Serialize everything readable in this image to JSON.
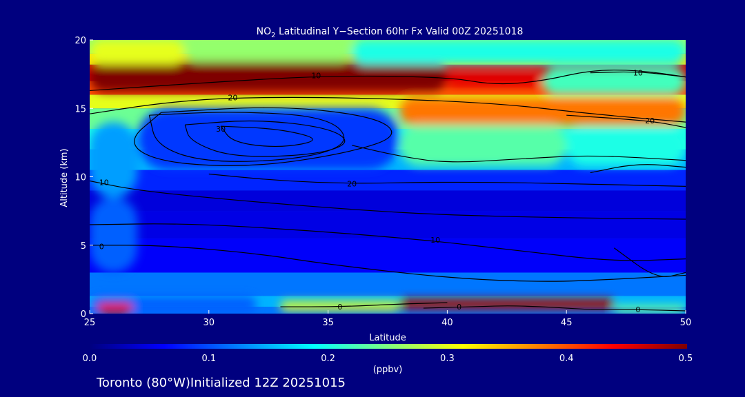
{
  "chart_data": {
    "type": "heatmap",
    "title": {
      "species_main": "NO",
      "species_sub": "2",
      "rest": " Latitudinal Y−Section 60hr  Fx Valid 00Z 20251018"
    },
    "xlabel": "Latitude",
    "ylabel": "Altitude (km)",
    "xlim": [
      25,
      50
    ],
    "ylim": [
      0,
      20
    ],
    "x_ticks": [
      25,
      30,
      35,
      40,
      45,
      50
    ],
    "y_ticks": [
      0,
      5,
      10,
      15,
      20
    ],
    "colorbar": {
      "label": "(ppbv)",
      "range": [
        0.0,
        0.5
      ],
      "ticks": [
        "0.0",
        "0.1",
        "0.2",
        "0.3",
        "0.4",
        "0.5"
      ],
      "colormap": [
        "#00007f",
        "#0000ff",
        "#0080ff",
        "#00ffff",
        "#80ff80",
        "#ffff00",
        "#ff8000",
        "#ff0000",
        "#7f0000"
      ]
    },
    "bands": [
      {
        "y0": 0.0,
        "y1": 0.5,
        "value": 0.12
      },
      {
        "y0": 0.5,
        "y1": 1.3,
        "value": 0.15
      },
      {
        "y0": 1.3,
        "y1": 3.0,
        "value": 0.12
      },
      {
        "y0": 3.0,
        "y1": 5.5,
        "value": 0.06
      },
      {
        "y0": 5.5,
        "y1": 7.5,
        "value": 0.05
      },
      {
        "y0": 7.5,
        "y1": 9.0,
        "value": 0.045
      },
      {
        "y0": 9.0,
        "y1": 10.5,
        "value": 0.08
      },
      {
        "y0": 10.5,
        "y1": 12.0,
        "value": 0.15
      },
      {
        "y0": 12.0,
        "y1": 13.5,
        "value": 0.2
      },
      {
        "y0": 13.5,
        "y1": 15.0,
        "value": 0.24
      },
      {
        "y0": 15.0,
        "y1": 16.0,
        "value": 0.3
      },
      {
        "y0": 16.0,
        "y1": 17.0,
        "value": 0.4
      },
      {
        "y0": 17.0,
        "y1": 18.2,
        "value": 0.46
      },
      {
        "y0": 18.2,
        "y1": 19.0,
        "value": 0.33
      },
      {
        "y0": 19.0,
        "y1": 20.0,
        "value": 0.26
      }
    ],
    "features": [
      {
        "x0": 25,
        "x1": 40,
        "y0": 16.2,
        "y1": 18.4,
        "value": 0.5
      },
      {
        "x0": 40,
        "x1": 44,
        "y0": 16.5,
        "y1": 17.5,
        "value": 0.45
      },
      {
        "x0": 25,
        "x1": 29,
        "y0": 18.2,
        "y1": 20.0,
        "value": 0.3
      },
      {
        "x0": 29,
        "x1": 36,
        "y0": 18.4,
        "y1": 20.0,
        "value": 0.26
      },
      {
        "x0": 36,
        "x1": 50,
        "y0": 18.2,
        "y1": 20.0,
        "value": 0.2
      },
      {
        "x0": 44,
        "x1": 50,
        "y0": 16.0,
        "y1": 18.0,
        "value": 0.22
      },
      {
        "x0": 38,
        "x1": 50,
        "y0": 13.8,
        "y1": 15.8,
        "value": 0.38
      },
      {
        "x0": 27,
        "x1": 38,
        "y0": 10.5,
        "y1": 15.0,
        "value": 0.09
      },
      {
        "x0": 38,
        "x1": 45,
        "y0": 10.8,
        "y1": 13.8,
        "value": 0.23
      },
      {
        "x0": 45,
        "x1": 50,
        "y0": 10.8,
        "y1": 13.5,
        "value": 0.2
      },
      {
        "x0": 25,
        "x1": 27,
        "y0": 8.5,
        "y1": 14.0,
        "value": 0.14
      },
      {
        "x0": 25,
        "x1": 27,
        "y0": 3.0,
        "y1": 8.5,
        "value": 0.11
      },
      {
        "x0": 25,
        "x1": 32,
        "y0": 0.0,
        "y1": 1.3,
        "value": 0.11
      },
      {
        "x0": 33,
        "x1": 38,
        "y0": 0.2,
        "y1": 0.9,
        "value": 0.3
      },
      {
        "x0": 38,
        "x1": 47,
        "y0": 0.3,
        "y1": 1.1,
        "value": 0.48
      },
      {
        "x0": 47,
        "x1": 50,
        "y0": 0.0,
        "y1": 0.6,
        "value": 0.24
      },
      {
        "x0": 25.3,
        "x1": 26.8,
        "y0": 0.0,
        "y1": 0.8,
        "value": 0.45
      }
    ],
    "contours": [
      {
        "label": "10",
        "label_at": [
          34.5,
          17.4
        ],
        "points": [
          [
            25,
            16.3
          ],
          [
            30,
            16.9
          ],
          [
            35,
            17.4
          ],
          [
            40,
            17.3
          ],
          [
            42,
            16.7
          ],
          [
            44,
            17.0
          ],
          [
            46,
            17.8
          ],
          [
            48,
            17.8
          ],
          [
            50,
            17.3
          ]
        ]
      },
      {
        "label": "10",
        "label_at": [
          48,
          17.6
        ],
        "points": [
          [
            46,
            17.6
          ],
          [
            48,
            17.7
          ],
          [
            50,
            17.3
          ]
        ]
      },
      {
        "label": "20",
        "label_at": [
          31,
          15.8
        ],
        "points": [
          [
            25,
            14.6
          ],
          [
            28,
            15.4
          ],
          [
            31,
            15.8
          ],
          [
            36,
            15.8
          ],
          [
            42,
            15.4
          ],
          [
            46,
            14.6
          ],
          [
            50,
            14.0
          ]
        ]
      },
      {
        "label": "20",
        "label_at": [
          48.5,
          14.1
        ],
        "points": [
          [
            45,
            14.5
          ],
          [
            48.5,
            14.1
          ],
          [
            50,
            13.6
          ]
        ]
      },
      {
        "label": "",
        "label_at": null,
        "points": [
          [
            28,
            14.7
          ],
          [
            33,
            15.2
          ],
          [
            37,
            14.4
          ],
          [
            38,
            13.0
          ],
          [
            36,
            11.8
          ],
          [
            32,
            10.7
          ],
          [
            28,
            11.0
          ],
          [
            26.5,
            12.5
          ],
          [
            28,
            14.7
          ]
        ]
      },
      {
        "label": "",
        "label_at": null,
        "points": [
          [
            27.5,
            14.5
          ],
          [
            31,
            14.8
          ],
          [
            35,
            14.4
          ],
          [
            36,
            12.5
          ],
          [
            34,
            11.3
          ],
          [
            30,
            11.0
          ],
          [
            27.8,
            12.2
          ],
          [
            27.5,
            14.5
          ]
        ]
      },
      {
        "label": "",
        "label_at": null,
        "points": [
          [
            29,
            13.8
          ],
          [
            32,
            14.2
          ],
          [
            35,
            13.6
          ],
          [
            36,
            12.5
          ],
          [
            34.5,
            11.6
          ],
          [
            31,
            11.4
          ],
          [
            29.2,
            12.6
          ],
          [
            29,
            13.8
          ]
        ]
      },
      {
        "label": "30",
        "label_at": [
          30.5,
          13.5
        ],
        "points": [
          [
            30.5,
            13.7
          ],
          [
            33,
            13.5
          ],
          [
            34.8,
            12.7
          ],
          [
            33,
            12.1
          ],
          [
            31,
            12.5
          ],
          [
            30.5,
            13.7
          ]
        ]
      },
      {
        "label": "",
        "label_at": null,
        "points": [
          [
            36,
            12.3
          ],
          [
            38,
            11.5
          ],
          [
            40,
            11.0
          ],
          [
            43,
            11.3
          ],
          [
            46,
            11.6
          ],
          [
            50,
            11.2
          ]
        ]
      },
      {
        "label": "",
        "label_at": null,
        "points": [
          [
            46,
            10.3
          ],
          [
            48,
            11.0
          ],
          [
            50,
            10.7
          ]
        ]
      },
      {
        "label": "20",
        "label_at": [
          36,
          9.5
        ],
        "points": [
          [
            30,
            10.2
          ],
          [
            33,
            9.7
          ],
          [
            36,
            9.5
          ],
          [
            39,
            9.6
          ],
          [
            42,
            9.6
          ],
          [
            45,
            9.5
          ],
          [
            50,
            9.3
          ]
        ]
      },
      {
        "label": "10",
        "label_at": [
          25.6,
          9.6
        ],
        "points": [
          [
            25,
            9.7
          ],
          [
            27,
            9.0
          ],
          [
            31,
            8.3
          ],
          [
            36,
            7.6
          ],
          [
            40,
            7.2
          ],
          [
            45,
            7.0
          ],
          [
            50,
            6.9
          ]
        ]
      },
      {
        "label": "10",
        "label_at": [
          39.5,
          5.4
        ],
        "points": [
          [
            25,
            6.5
          ],
          [
            29,
            6.6
          ],
          [
            34,
            6.1
          ],
          [
            39,
            5.4
          ],
          [
            43,
            4.6
          ],
          [
            47,
            3.8
          ],
          [
            50,
            4.0
          ]
        ]
      },
      {
        "label": "",
        "label_at": null,
        "points": [
          [
            47,
            4.8
          ],
          [
            48.8,
            2.5
          ],
          [
            50,
            3.0
          ]
        ]
      },
      {
        "label": "0",
        "label_at": [
          25.5,
          4.9
        ],
        "points": [
          [
            25,
            5.0
          ],
          [
            28,
            5.0
          ],
          [
            32,
            4.4
          ],
          [
            35,
            3.6
          ],
          [
            40,
            2.6
          ],
          [
            44,
            2.3
          ],
          [
            47,
            2.5
          ],
          [
            50,
            2.8
          ]
        ]
      },
      {
        "label": "0",
        "label_at": [
          35.5,
          0.5
        ],
        "points": [
          [
            33,
            0.5
          ],
          [
            35.5,
            0.5
          ],
          [
            38,
            0.7
          ],
          [
            40,
            0.8
          ]
        ]
      },
      {
        "label": "0",
        "label_at": [
          40.5,
          0.5
        ],
        "points": [
          [
            39,
            0.4
          ],
          [
            41,
            0.5
          ],
          [
            43,
            0.6
          ],
          [
            46,
            0.3
          ]
        ]
      },
      {
        "label": "0",
        "label_at": [
          48,
          0.3
        ],
        "points": [
          [
            46,
            0.3
          ],
          [
            48,
            0.3
          ],
          [
            50,
            0.2
          ]
        ]
      }
    ]
  },
  "footer": {
    "location": "Toronto (80°W)",
    "init": "Initialized 12Z 20251015"
  }
}
